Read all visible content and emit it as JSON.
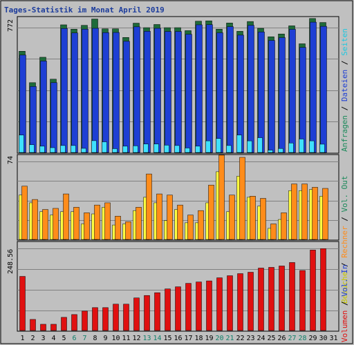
{
  "title": "Tages-Statistik im Monat April 2019",
  "colors": {
    "background": "#c0c0c0",
    "grid": "#808080",
    "hits": "#1e3fd4",
    "hits_shadow": "#1e6b3a",
    "files": "#3fe0ff",
    "files_shadow": "#127c70",
    "visits": "#ffff40",
    "sites": "#ff8c1a",
    "kbytes": "#e01010",
    "weekend_tick": "#10806a",
    "weekday_tick": "#000000"
  },
  "legends": {
    "top": [
      {
        "text": "Anfragen",
        "color": "#1a8a5a"
      },
      {
        "text": " / ",
        "color": "#000000"
      },
      {
        "text": "Dateien",
        "color": "#1e3fd4"
      },
      {
        "text": " / ",
        "color": "#000000"
      },
      {
        "text": "Seiten",
        "color": "#1ec8e0"
      }
    ],
    "mid": [
      {
        "text": "Besuche",
        "color": "#c8c800"
      },
      {
        "text": " / ",
        "color": "#000000"
      },
      {
        "text": "Rechner",
        "color": "#ff8c1a"
      },
      {
        "text": " / ",
        "color": "#000000"
      },
      {
        "text": "Vol. Out",
        "color": "#1a8a5a"
      }
    ],
    "bot": [
      {
        "text": "Volumen",
        "color": "#e01010"
      },
      {
        "text": " / ",
        "color": "#000000"
      },
      {
        "text": "Vol. In",
        "color": "#1e3fd4"
      }
    ]
  },
  "chart_data": [
    {
      "type": "bar",
      "panel": "top",
      "y_label_max": "772",
      "ylim": [
        0,
        772
      ],
      "x": [
        1,
        2,
        3,
        4,
        5,
        6,
        7,
        8,
        9,
        10,
        11,
        12,
        13,
        14,
        15,
        16,
        17,
        18,
        19,
        20,
        21,
        22,
        23,
        24,
        25,
        26,
        27,
        28,
        29,
        30,
        31
      ],
      "weekend_days": [
        6,
        7,
        13,
        14,
        20,
        21,
        27,
        28
      ],
      "series": [
        {
          "name": "Anfragen",
          "values": [
            609,
            420,
            573,
            441,
            768,
            742,
            765,
            803,
            744,
            744,
            692,
            778,
            751,
            770,
            751,
            751,
            733,
            790,
            792,
            742,
            779,
            729,
            788,
            747,
            696,
            713,
            762,
            654,
            806,
            782,
            0
          ]
        },
        {
          "name": "Dateien",
          "values": [
            586,
            397,
            550,
            420,
            746,
            719,
            742,
            747,
            721,
            722,
            669,
            756,
            729,
            747,
            728,
            728,
            711,
            768,
            769,
            720,
            757,
            706,
            765,
            725,
            674,
            691,
            741,
            632,
            784,
            759,
            0
          ]
        },
        {
          "name": "Seiten",
          "values": [
            105,
            47,
            38,
            29,
            42,
            42,
            25,
            71,
            64,
            23,
            38,
            40,
            51,
            51,
            44,
            42,
            27,
            38,
            70,
            84,
            42,
            105,
            70,
            89,
            14,
            24,
            57,
            81,
            70,
            50,
            0
          ]
        }
      ]
    },
    {
      "type": "bar",
      "panel": "middle",
      "y_label_max": "74",
      "ylim": [
        0,
        74
      ],
      "x": [
        1,
        2,
        3,
        4,
        5,
        6,
        7,
        8,
        9,
        10,
        11,
        12,
        13,
        14,
        15,
        16,
        17,
        18,
        19,
        20,
        21,
        22,
        23,
        24,
        25,
        26,
        27,
        28,
        29,
        30,
        31
      ],
      "series": [
        {
          "name": "Besuche",
          "values": [
            40,
            33,
            25,
            22,
            25,
            25,
            14,
            23,
            29,
            13,
            14,
            26,
            38,
            33,
            17,
            27,
            15,
            15,
            33,
            61,
            25,
            57,
            38,
            30,
            10,
            18,
            44,
            44,
            45,
            39,
            0
          ]
        },
        {
          "name": "Rechner",
          "values": [
            48,
            36,
            27,
            28,
            41,
            29,
            24,
            31,
            33,
            21,
            16,
            29,
            59,
            41,
            40,
            31,
            22,
            26,
            49,
            76,
            40,
            74,
            39,
            37,
            14,
            24,
            50,
            50,
            47,
            46,
            0
          ]
        }
      ]
    },
    {
      "type": "bar",
      "panel": "bottom",
      "y_label_max": "248.56",
      "ylim": [
        0,
        248.56
      ],
      "x": [
        1,
        2,
        3,
        4,
        5,
        6,
        7,
        8,
        9,
        10,
        11,
        12,
        13,
        14,
        15,
        16,
        17,
        18,
        19,
        20,
        21,
        22,
        23,
        24,
        25,
        26,
        27,
        28,
        29,
        30,
        31
      ],
      "series": [
        {
          "name": "Volumen",
          "values": [
            156,
            32,
            18,
            18,
            38,
            46,
            56,
            66,
            66,
            76,
            76,
            94,
            101,
            109,
            120,
            126,
            136,
            140,
            143,
            152,
            158,
            164,
            168,
            180,
            182,
            186,
            196,
            173,
            232,
            236,
            0
          ]
        }
      ]
    }
  ]
}
